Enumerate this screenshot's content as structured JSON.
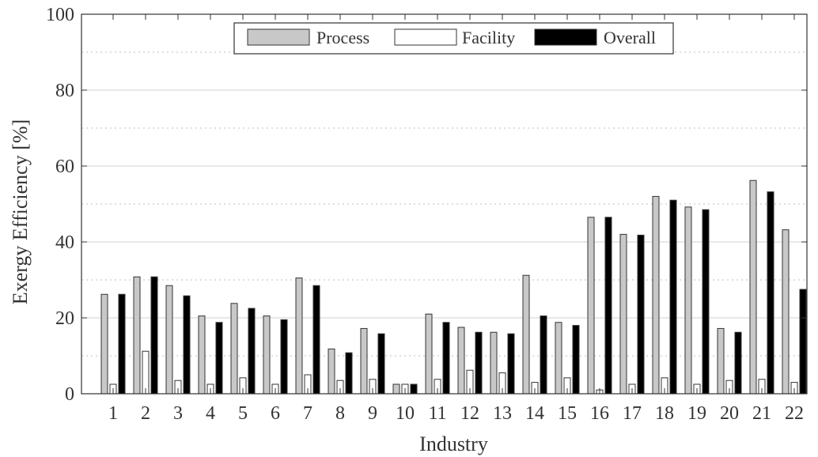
{
  "chart_data": {
    "type": "bar",
    "xlabel": "Industry",
    "ylabel": "Exergy Efficiency [%]",
    "ylim": [
      0,
      100
    ],
    "y_ticks": [
      0,
      20,
      40,
      60,
      80,
      100
    ],
    "grid": "major solid, minor dotted",
    "legend_position": "top-center",
    "categories": [
      "1",
      "2",
      "3",
      "4",
      "5",
      "6",
      "7",
      "8",
      "9",
      "10",
      "11",
      "12",
      "13",
      "14",
      "15",
      "16",
      "17",
      "18",
      "19",
      "20",
      "21",
      "22"
    ],
    "series": [
      {
        "name": "Process",
        "color": "#c8c8c8",
        "values": [
          26.2,
          30.8,
          28.5,
          20.5,
          23.8,
          20.5,
          30.5,
          11.8,
          17.2,
          2.5,
          21.0,
          17.5,
          16.2,
          31.2,
          18.8,
          46.5,
          42.0,
          52.0,
          49.2,
          17.2,
          56.2,
          43.2
        ]
      },
      {
        "name": "Facility",
        "color": "#ffffff",
        "values": [
          2.5,
          11.2,
          3.5,
          2.5,
          4.2,
          2.5,
          5.0,
          3.5,
          3.8,
          2.5,
          3.8,
          6.2,
          5.5,
          3.0,
          4.2,
          1.0,
          2.5,
          4.2,
          2.5,
          3.5,
          3.8,
          3.0
        ]
      },
      {
        "name": "Overall",
        "color": "#000000",
        "values": [
          26.2,
          30.8,
          25.8,
          18.8,
          22.5,
          19.5,
          28.5,
          10.8,
          15.8,
          2.5,
          18.8,
          16.2,
          15.8,
          20.5,
          18.0,
          46.5,
          41.8,
          51.0,
          48.5,
          16.2,
          53.2,
          27.5
        ]
      }
    ]
  }
}
